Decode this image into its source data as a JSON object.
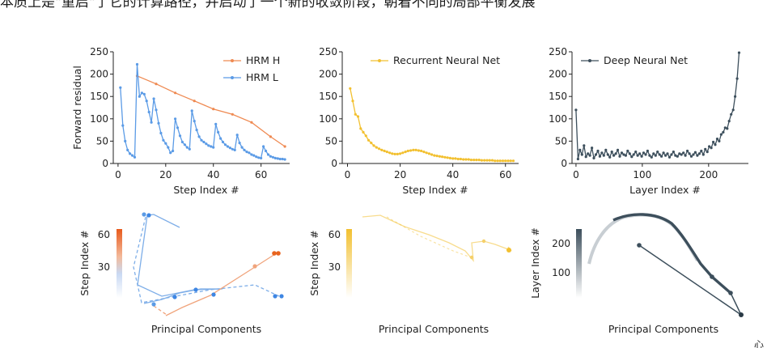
{
  "caption": "本质上是\"重启\"了它的计算路径，并启动了一个新的收敛阶段，朝着不同的局部平衡发展",
  "watermark": "心",
  "colors": {
    "hrm_h": "#ef8a52",
    "hrm_l": "#5b9be6",
    "rnn": "#f2c030",
    "dnn": "#3d4f5c"
  },
  "chart_data": [
    {
      "type": "line",
      "id": "hrm",
      "ylabel": "Forward residual",
      "xlabel": "Step Index #",
      "xlim": [
        -2,
        72
      ],
      "ylim": [
        0,
        250
      ],
      "xticks": [
        0,
        20,
        40,
        60
      ],
      "yticks": [
        0,
        50,
        100,
        150,
        200,
        250
      ],
      "legend_position": "top-right",
      "series": [
        {
          "name": "HRM H",
          "color": "#ef8a52",
          "x": [
            8,
            16,
            24,
            32,
            40,
            48,
            56,
            64,
            70
          ],
          "y": [
            196,
            178,
            158,
            140,
            122,
            110,
            92,
            60,
            38
          ]
        },
        {
          "name": "HRM L",
          "color": "#5b9be6",
          "x": [
            1,
            2,
            3,
            4,
            5,
            6,
            7,
            8,
            9,
            10,
            11,
            12,
            13,
            14,
            15,
            16,
            17,
            18,
            19,
            20,
            21,
            22,
            23,
            24,
            25,
            26,
            27,
            28,
            29,
            30,
            31,
            32,
            33,
            34,
            35,
            36,
            37,
            38,
            39,
            40,
            41,
            42,
            43,
            44,
            45,
            46,
            47,
            48,
            49,
            50,
            51,
            52,
            53,
            54,
            55,
            56,
            57,
            58,
            59,
            60,
            61,
            62,
            63,
            64,
            65,
            66,
            67,
            68,
            69,
            70
          ],
          "y": [
            170,
            85,
            50,
            30,
            22,
            18,
            14,
            222,
            150,
            158,
            155,
            140,
            115,
            92,
            145,
            120,
            90,
            68,
            52,
            45,
            36,
            24,
            28,
            100,
            80,
            62,
            48,
            42,
            36,
            32,
            118,
            95,
            75,
            60,
            52,
            48,
            44,
            40,
            38,
            36,
            88,
            70,
            56,
            48,
            42,
            38,
            35,
            32,
            30,
            64,
            46,
            36,
            30,
            26,
            24,
            20,
            18,
            15,
            13,
            12,
            38,
            28,
            20,
            16,
            14,
            12,
            11,
            10,
            10,
            9
          ]
        }
      ]
    },
    {
      "type": "line",
      "id": "rnn",
      "xlabel": "Step Index #",
      "xlim": [
        -2,
        65
      ],
      "ylim": [
        0,
        250
      ],
      "xticks": [
        0,
        20,
        40,
        60
      ],
      "yticks": [
        0,
        50,
        100,
        150,
        200,
        250
      ],
      "legend_position": "top-right",
      "series": [
        {
          "name": "Recurrent Neural Net",
          "color": "#f2c030",
          "x": [
            1,
            2,
            3,
            4,
            5,
            6,
            7,
            8,
            9,
            10,
            11,
            12,
            13,
            14,
            15,
            16,
            17,
            18,
            19,
            20,
            21,
            22,
            23,
            24,
            25,
            26,
            27,
            28,
            29,
            30,
            31,
            32,
            33,
            34,
            35,
            36,
            37,
            38,
            39,
            40,
            41,
            42,
            43,
            44,
            45,
            46,
            47,
            48,
            49,
            50,
            51,
            52,
            53,
            54,
            55,
            56,
            57,
            58,
            59,
            60,
            61,
            62,
            63
          ],
          "y": [
            168,
            140,
            110,
            105,
            78,
            70,
            62,
            52,
            46,
            40,
            36,
            33,
            30,
            28,
            26,
            24,
            22,
            21,
            21,
            22,
            24,
            26,
            28,
            29,
            30,
            30,
            29,
            28,
            26,
            24,
            22,
            20,
            18,
            17,
            16,
            15,
            14,
            13,
            12,
            11,
            11,
            10,
            10,
            9,
            9,
            9,
            8,
            8,
            8,
            8,
            7,
            7,
            7,
            7,
            7,
            6,
            6,
            6,
            6,
            6,
            6,
            6,
            6
          ]
        }
      ]
    },
    {
      "type": "line",
      "id": "dnn",
      "xlabel": "Layer Index #",
      "xlim": [
        -6,
        260
      ],
      "ylim": [
        0,
        250
      ],
      "xticks": [
        0,
        100,
        200
      ],
      "yticks": [
        0,
        50,
        100,
        150,
        200,
        250
      ],
      "legend_position": "top-left",
      "series": [
        {
          "name": "Deep Neural Net",
          "color": "#3d4f5c",
          "x": [
            0,
            3,
            6,
            9,
            12,
            15,
            18,
            21,
            24,
            27,
            30,
            33,
            36,
            39,
            42,
            45,
            48,
            51,
            54,
            57,
            60,
            63,
            66,
            69,
            72,
            75,
            78,
            81,
            84,
            87,
            90,
            93,
            96,
            99,
            102,
            105,
            108,
            111,
            114,
            117,
            120,
            123,
            126,
            129,
            132,
            135,
            138,
            141,
            144,
            147,
            150,
            153,
            156,
            159,
            162,
            165,
            168,
            171,
            174,
            177,
            180,
            183,
            186,
            189,
            192,
            195,
            198,
            201,
            204,
            207,
            210,
            213,
            216,
            219,
            222,
            225,
            228,
            231,
            234,
            237,
            240,
            243,
            246
          ],
          "y": [
            120,
            10,
            30,
            20,
            40,
            15,
            22,
            18,
            35,
            12,
            20,
            28,
            16,
            24,
            18,
            30,
            20,
            14,
            26,
            18,
            22,
            30,
            16,
            24,
            20,
            18,
            28,
            22,
            15,
            20,
            26,
            18,
            22,
            16,
            24,
            20,
            28,
            18,
            14,
            22,
            18,
            26,
            20,
            16,
            24,
            18,
            22,
            14,
            20,
            26,
            18,
            16,
            22,
            20,
            24,
            18,
            28,
            22,
            16,
            20,
            25,
            18,
            22,
            28,
            20,
            32,
            26,
            38,
            35,
            48,
            42,
            55,
            50,
            65,
            70,
            80,
            78,
            95,
            110,
            120,
            150,
            190,
            248
          ]
        }
      ]
    },
    {
      "type": "scatter",
      "id": "hrm_pca",
      "xlabel": "Principal Components",
      "ylabel": "Step Index #",
      "yticks": [
        30,
        60
      ],
      "colorbar_range": [
        0,
        70
      ]
    },
    {
      "type": "scatter",
      "id": "rnn_pca",
      "xlabel": "Principal Components",
      "ylabel": "Step Index #",
      "yticks": [
        30,
        60
      ],
      "colorbar_range": [
        0,
        63
      ]
    },
    {
      "type": "scatter",
      "id": "dnn_pca",
      "xlabel": "Principal Components",
      "ylabel": "Layer Index #",
      "yticks": [
        100,
        200
      ],
      "colorbar_range": [
        0,
        250
      ]
    }
  ]
}
